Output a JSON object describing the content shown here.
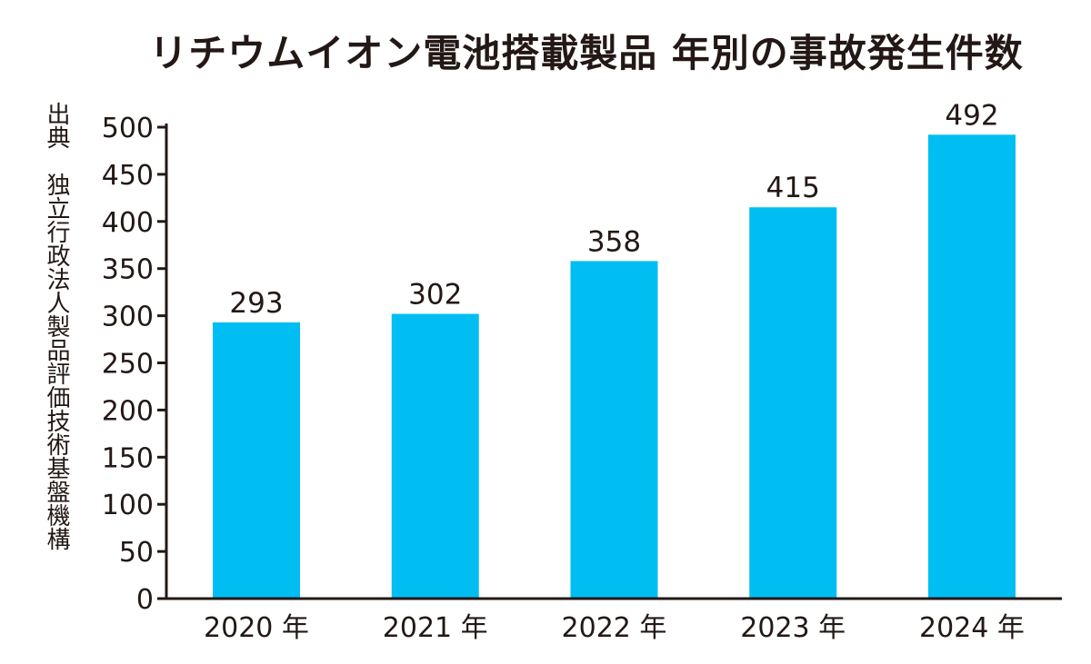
{
  "colors": {
    "bar": "#00BEF2",
    "axis": "#231815",
    "text": "#231815",
    "background": "#FFFFFF"
  },
  "source_note": "出典　独立行政法人製品評価技術基盤機構",
  "chart_data": {
    "type": "bar",
    "title": "リチウムイオン電池搭載製品 年別の事故発生件数",
    "xlabel": "",
    "ylabel": "",
    "categories": [
      "2020 年",
      "2021 年",
      "2022 年",
      "2023 年",
      "2024 年"
    ],
    "values": [
      293,
      302,
      358,
      415,
      492
    ],
    "data_labels": [
      "293",
      "302",
      "358",
      "415",
      "492"
    ],
    "ylim": [
      0,
      500
    ],
    "yticks": [
      0,
      50,
      100,
      150,
      200,
      250,
      300,
      350,
      400,
      450,
      500
    ],
    "ytick_labels": [
      "0",
      "50",
      "100",
      "150",
      "200",
      "250",
      "300",
      "350",
      "400",
      "450",
      "500"
    ],
    "grid": false,
    "legend": "none"
  }
}
